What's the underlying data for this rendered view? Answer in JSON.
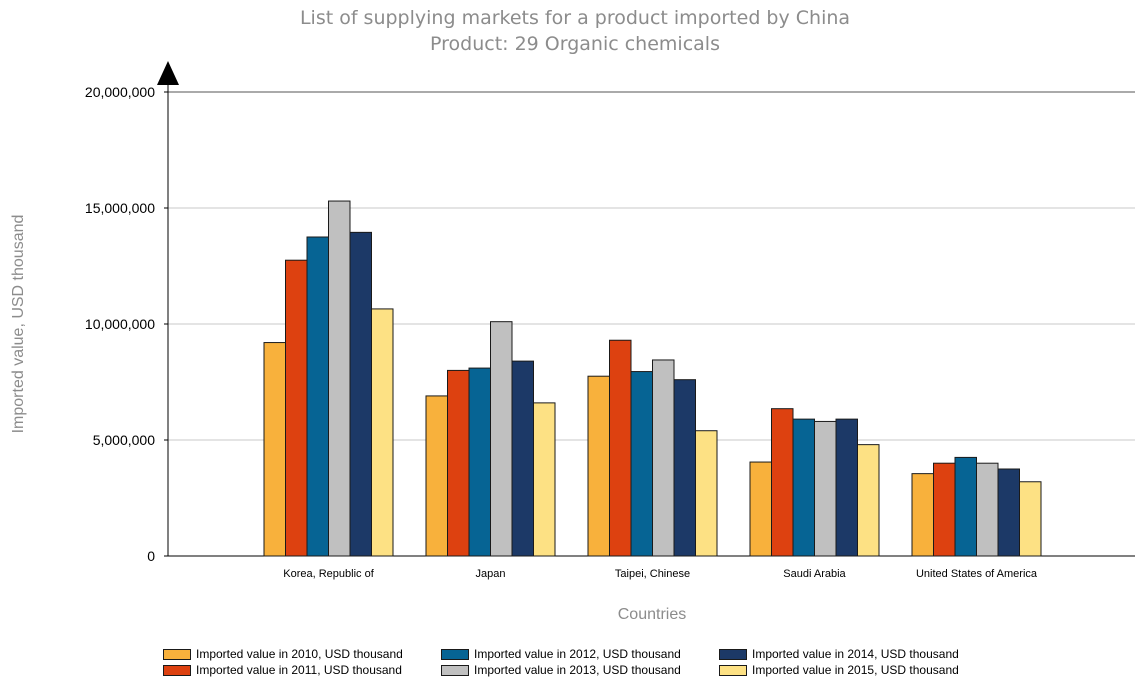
{
  "chart_data": {
    "type": "bar",
    "title": "List of supplying markets for a product imported by China",
    "subtitle": "Product: 29 Organic chemicals",
    "xlabel": "Countries",
    "ylabel": "Imported value, USD thousand",
    "ylim": [
      0,
      20000000
    ],
    "yticks": [
      0,
      5000000,
      10000000,
      15000000,
      20000000
    ],
    "ytick_labels": [
      "0",
      "5,000,000",
      "10,000,000",
      "15,000,000",
      "20,000,000"
    ],
    "grid": true,
    "legend_position": "bottom",
    "categories": [
      "Korea, Republic of",
      "Japan",
      "Taipei, Chinese",
      "Saudi Arabia",
      "United States of America"
    ],
    "series": [
      {
        "name": "Imported value in 2010, USD thousand",
        "color": "#f8b13c",
        "values": [
          9200000,
          6900000,
          7750000,
          4050000,
          3550000
        ]
      },
      {
        "name": "Imported value in 2011, USD thousand",
        "color": "#dd4110",
        "values": [
          12750000,
          8000000,
          9300000,
          6350000,
          4000000
        ]
      },
      {
        "name": "Imported value in 2012, USD thousand",
        "color": "#066494",
        "values": [
          13750000,
          8100000,
          7950000,
          5900000,
          4250000
        ]
      },
      {
        "name": "Imported value in 2013, USD thousand",
        "color": "#c0c0c0",
        "values": [
          15300000,
          10100000,
          8450000,
          5800000,
          4000000
        ]
      },
      {
        "name": "Imported value in 2014, USD thousand",
        "color": "#1c3967",
        "values": [
          13950000,
          8400000,
          7600000,
          5900000,
          3750000
        ]
      },
      {
        "name": "Imported value in 2015, USD thousand",
        "color": "#fde184",
        "values": [
          10650000,
          6600000,
          5400000,
          4800000,
          3200000
        ]
      }
    ]
  }
}
